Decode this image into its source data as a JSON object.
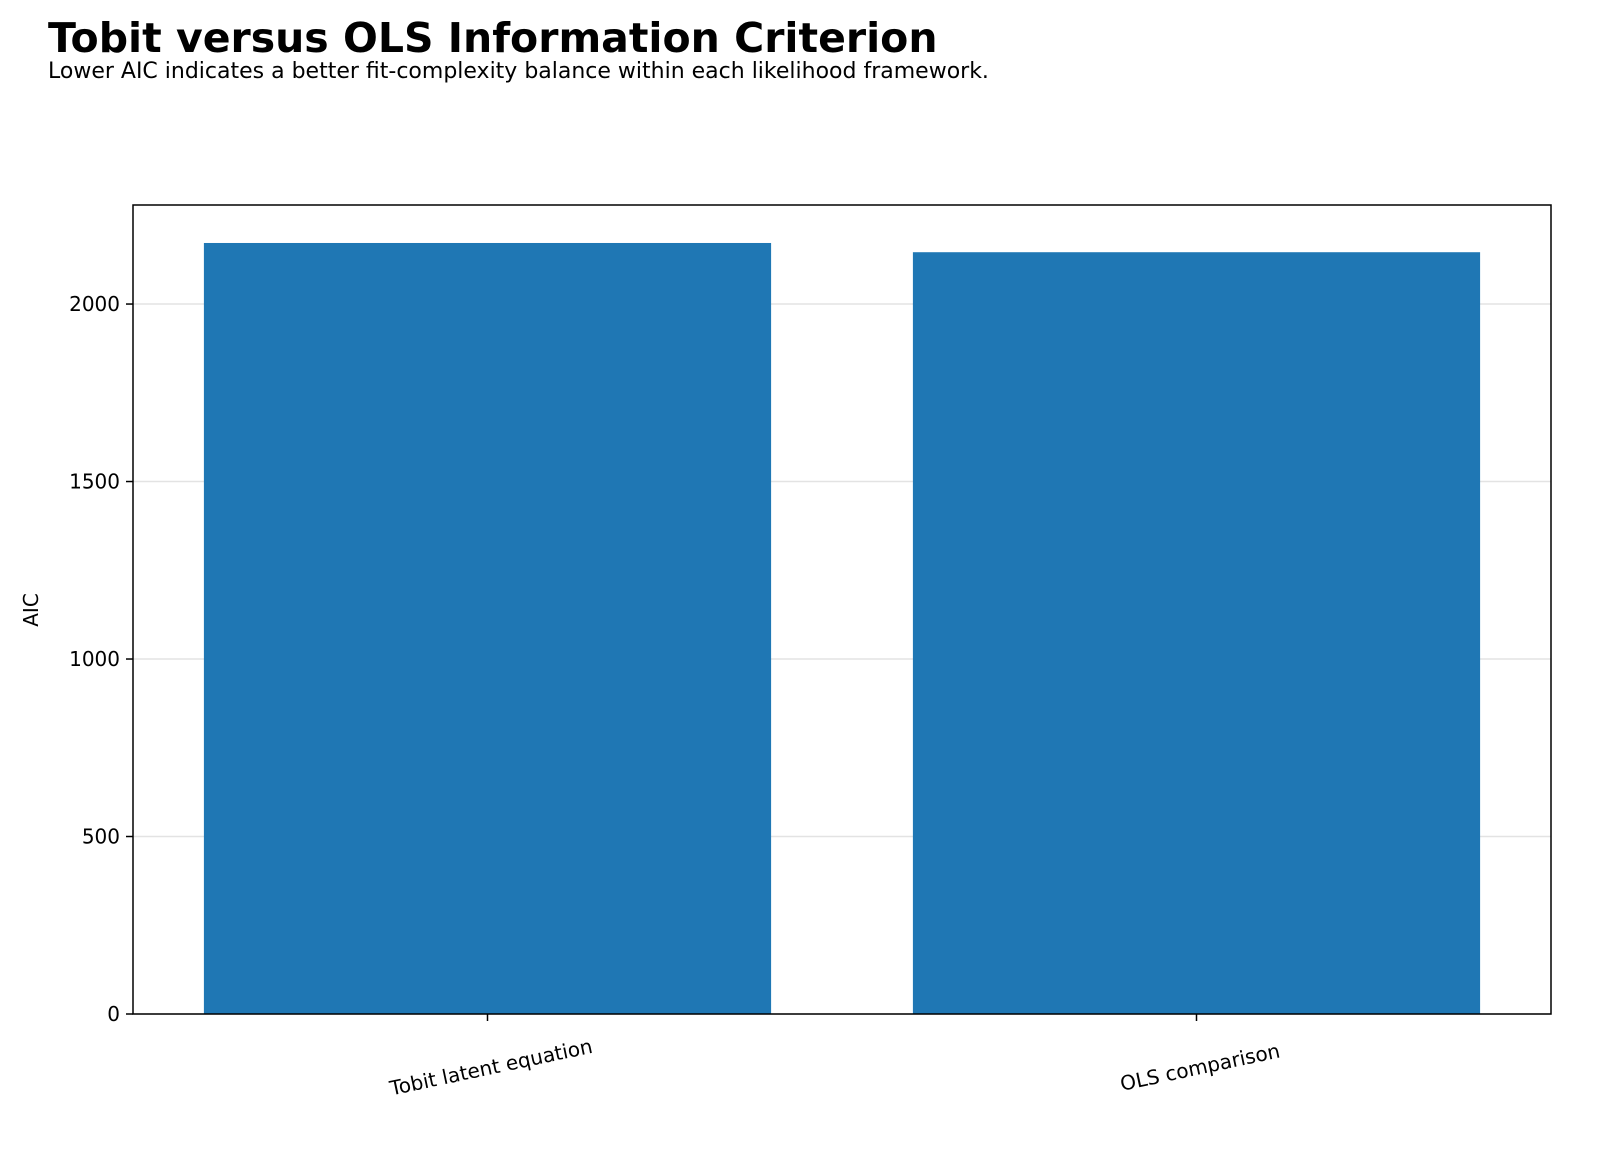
{
  "chart_data": {
    "type": "bar",
    "title": "Tobit versus OLS Information Criterion",
    "subtitle": "Lower AIC indicates a better fit-complexity balance within each likelihood framework.",
    "y_label": "AIC",
    "categories": [
      "Tobit latent equation",
      "OLS comparison"
    ],
    "values": [
      2172,
      2146
    ],
    "color": "#1f77b4",
    "ylim": [
      0,
      2279
    ],
    "yticks": [
      0,
      500,
      1000,
      1500,
      2000
    ],
    "grid": true
  }
}
